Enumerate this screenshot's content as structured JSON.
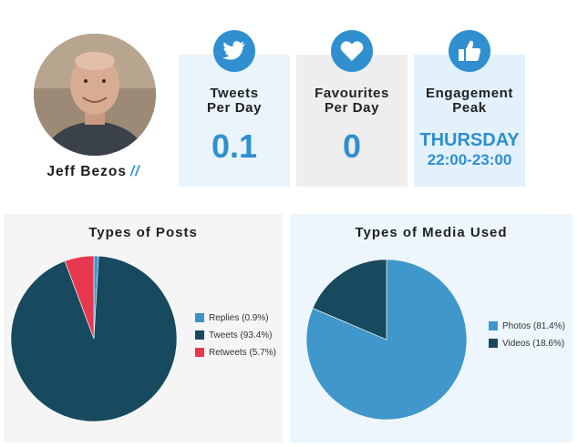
{
  "profile": {
    "name": "Jeff Bezos",
    "name_suffix": "//",
    "avatar_icon": "person-photo"
  },
  "stats": [
    {
      "icon": "twitter-bird-icon",
      "title_line1": "Tweets",
      "title_line2": "Per Day",
      "value": "0.1"
    },
    {
      "icon": "heart-icon",
      "title_line1": "Favourites",
      "title_line2": "Per Day",
      "value": "0"
    },
    {
      "icon": "thumbs-up-icon",
      "title_line1": "Engagement",
      "title_line2": "Peak",
      "value_day": "THURSDAY",
      "value_time": "22:00-23:00"
    }
  ],
  "colors": {
    "accent": "#2f8fcf",
    "replies": "#3d93c8",
    "tweets": "#174a5e",
    "retweets": "#e8384f",
    "photos": "#3f97cb",
    "videos": "#174a5e"
  },
  "chart_data": [
    {
      "type": "pie",
      "title": "Types of Posts",
      "legend_position": "right",
      "slices": [
        {
          "label": "Replies (0.9%)",
          "value": 0.9,
          "color": "#3d93c8"
        },
        {
          "label": "Tweets (93.4%)",
          "value": 93.4,
          "color": "#174a5e"
        },
        {
          "label": "Retweets (5.7%)",
          "value": 5.7,
          "color": "#e8384f"
        }
      ]
    },
    {
      "type": "pie",
      "title": "Types of Media Used",
      "legend_position": "right",
      "slices": [
        {
          "label": "Photos (81.4%)",
          "value": 81.4,
          "color": "#3f97cb"
        },
        {
          "label": "Videos (18.6%)",
          "value": 18.6,
          "color": "#174a5e"
        }
      ]
    }
  ]
}
